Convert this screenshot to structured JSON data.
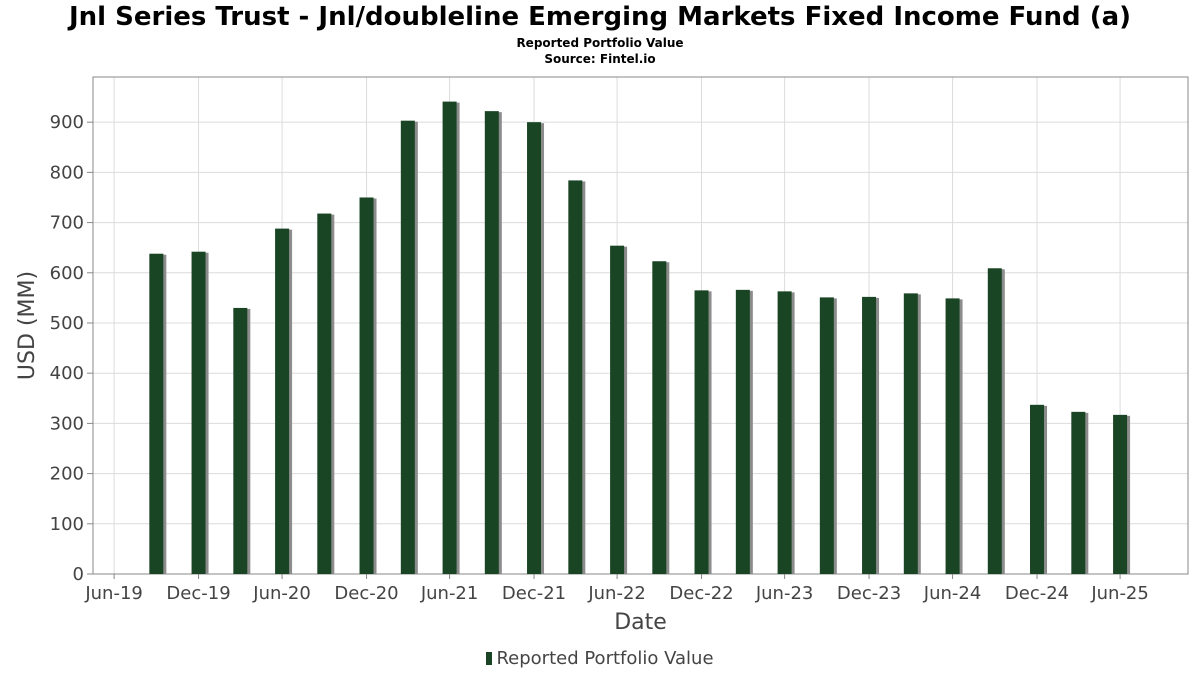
{
  "chart_data": {
    "type": "bar",
    "title": "Jnl Series Trust - Jnl/doubleline Emerging Markets Fixed Income Fund (a)",
    "subtitle": "Reported Portfolio Value",
    "source": "Source: Fintel.io",
    "xlabel": "Date",
    "ylabel": "USD (MM)",
    "ylim": [
      0,
      990
    ],
    "yticks": [
      0,
      100,
      200,
      300,
      400,
      500,
      600,
      700,
      800,
      900
    ],
    "xlim": [
      "2019-05-15",
      "2025-11-25"
    ],
    "xticks": [
      {
        "date": "2019-06-30",
        "label": "Jun-19"
      },
      {
        "date": "2019-12-31",
        "label": "Dec-19"
      },
      {
        "date": "2020-06-30",
        "label": "Jun-20"
      },
      {
        "date": "2020-12-31",
        "label": "Dec-20"
      },
      {
        "date": "2021-06-30",
        "label": "Jun-21"
      },
      {
        "date": "2021-12-31",
        "label": "Dec-21"
      },
      {
        "date": "2022-06-30",
        "label": "Jun-22"
      },
      {
        "date": "2022-12-31",
        "label": "Dec-22"
      },
      {
        "date": "2023-06-30",
        "label": "Jun-23"
      },
      {
        "date": "2023-12-31",
        "label": "Dec-23"
      },
      {
        "date": "2024-06-30",
        "label": "Jun-24"
      },
      {
        "date": "2024-12-31",
        "label": "Dec-24"
      },
      {
        "date": "2025-06-30",
        "label": "Jun-25"
      }
    ],
    "grid": true,
    "legend_position": "bottom-center",
    "series": [
      {
        "name": "Reported Portfolio Value",
        "color": "#1a4524",
        "shadow_color": "#8c8c8c",
        "points": [
          {
            "x": "2019-09-30",
            "y": 638
          },
          {
            "x": "2019-12-31",
            "y": 642
          },
          {
            "x": "2020-03-31",
            "y": 530
          },
          {
            "x": "2020-06-30",
            "y": 688
          },
          {
            "x": "2020-09-30",
            "y": 718
          },
          {
            "x": "2020-12-31",
            "y": 750
          },
          {
            "x": "2021-03-31",
            "y": 903
          },
          {
            "x": "2021-06-30",
            "y": 941
          },
          {
            "x": "2021-09-30",
            "y": 922
          },
          {
            "x": "2021-12-31",
            "y": 900
          },
          {
            "x": "2022-03-31",
            "y": 784
          },
          {
            "x": "2022-06-30",
            "y": 654
          },
          {
            "x": "2022-09-30",
            "y": 623
          },
          {
            "x": "2022-12-31",
            "y": 565
          },
          {
            "x": "2023-03-31",
            "y": 566
          },
          {
            "x": "2023-06-30",
            "y": 563
          },
          {
            "x": "2023-09-30",
            "y": 551
          },
          {
            "x": "2023-12-31",
            "y": 552
          },
          {
            "x": "2024-03-31",
            "y": 559
          },
          {
            "x": "2024-06-30",
            "y": 549
          },
          {
            "x": "2024-09-30",
            "y": 609
          },
          {
            "x": "2024-12-31",
            "y": 337
          },
          {
            "x": "2025-03-31",
            "y": 323
          },
          {
            "x": "2025-06-30",
            "y": 317
          }
        ]
      }
    ]
  }
}
